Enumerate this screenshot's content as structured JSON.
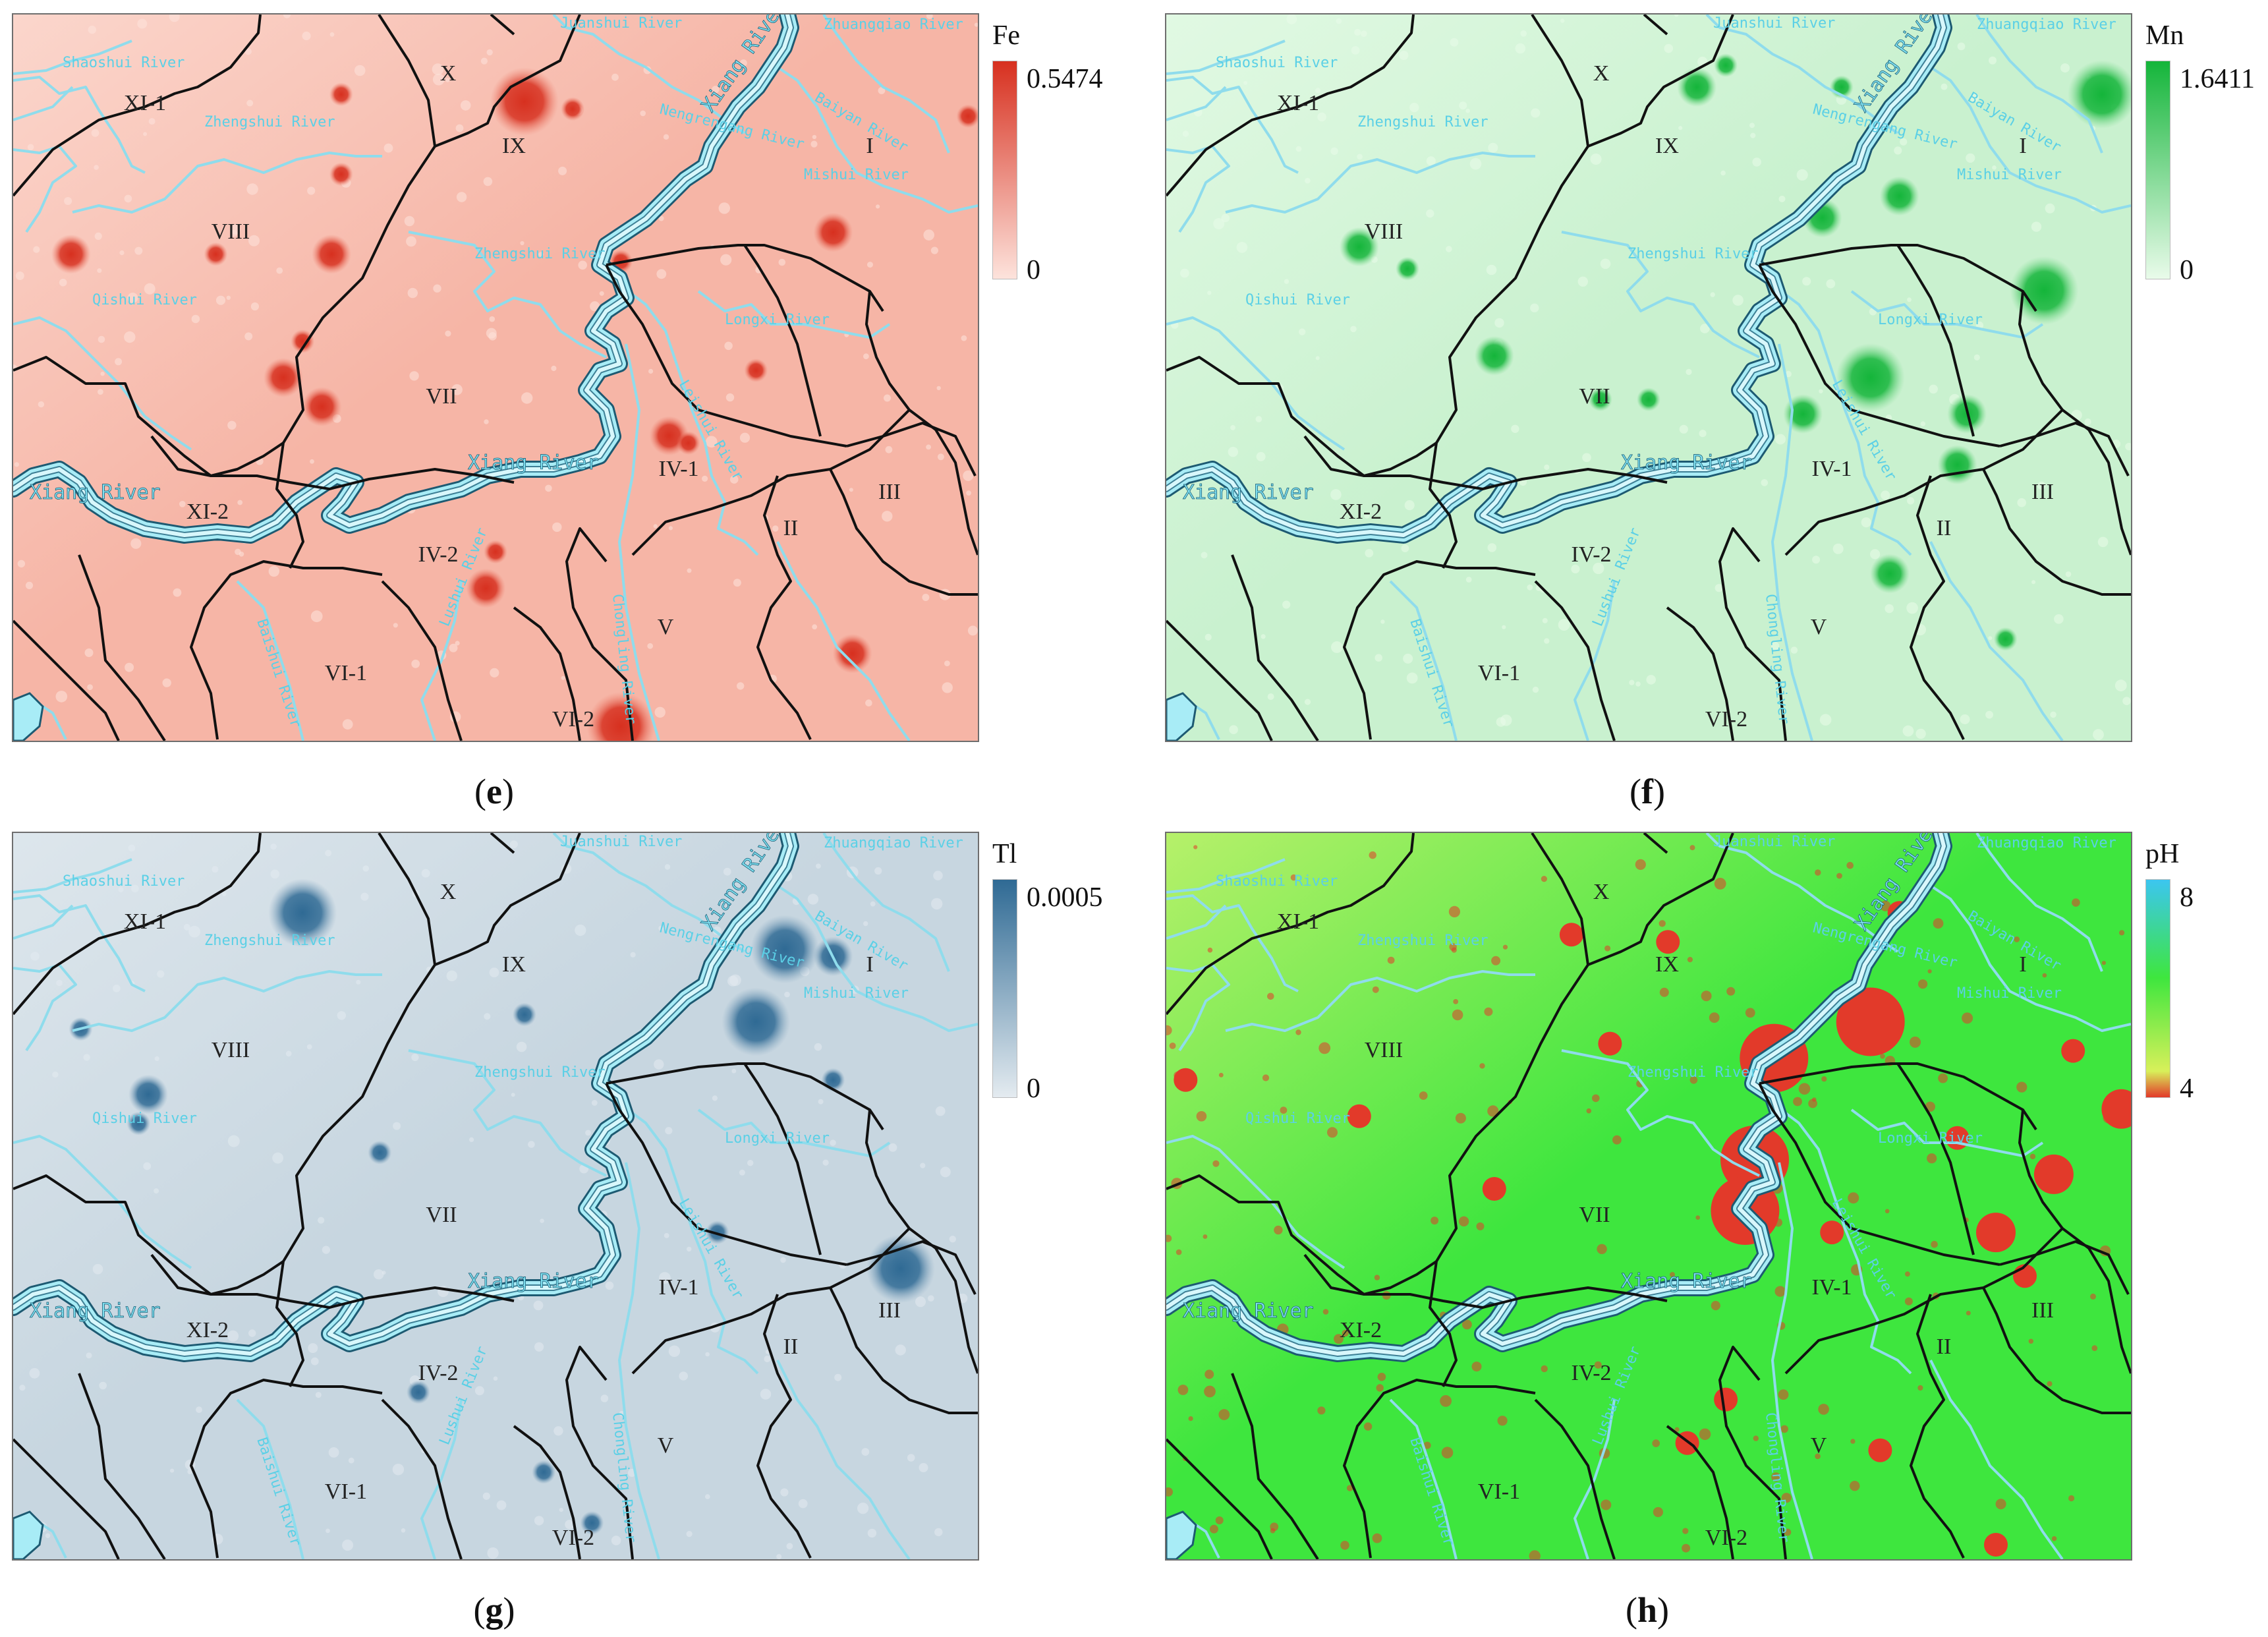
{
  "panels": [
    {
      "id": "e",
      "caption": "e",
      "variable": "Fe",
      "legend_max": "0.5474",
      "legend_min": "0",
      "colors": {
        "bg": "#f6b5a6",
        "bg_light": "#fbd6cc",
        "high": "#d7301f",
        "mid": "#ee7d6a",
        "low": "#fde3dc"
      }
    },
    {
      "id": "f",
      "caption": "f",
      "variable": "Mn",
      "legend_max": "1.6411",
      "legend_min": "0",
      "colors": {
        "bg": "#c9f1cf",
        "bg_light": "#e1f9e3",
        "high": "#14b53a",
        "mid": "#6fd884",
        "low": "#e9fbea"
      }
    },
    {
      "id": "g",
      "caption": "g",
      "variable": "Tl",
      "legend_max": "0.0005",
      "legend_min": "0",
      "colors": {
        "bg": "#c7d6e0",
        "bg_light": "#dde6ec",
        "high": "#2f6a94",
        "mid": "#7ea2bd",
        "low": "#e4ebf0"
      }
    },
    {
      "id": "h",
      "caption": "h",
      "variable": "pH",
      "legend_max": "8",
      "legend_min": "4",
      "colors": {
        "bg": "#3ee63e",
        "bg_light": "#b6f06a",
        "high": "#3cc6f0",
        "mid": "#46d2a8",
        "low": "#e23a2a"
      }
    }
  ],
  "zone_labels": [
    "X",
    "XI-1",
    "IX",
    "I",
    "VIII",
    "VII",
    "IV-1",
    "III",
    "XI-2",
    "II",
    "IV-2",
    "V",
    "VI-1",
    "VI-2"
  ],
  "river_labels": {
    "juanshui": "Juanshui River",
    "zhuangqiao": "Zhuangqiao River",
    "shaoshui": "Shaoshui River",
    "nengrengang": "Nengrengang River",
    "baiyan": "Baiyan River",
    "zhengshui_top": "Zhengshui River",
    "mishui": "Mishui River",
    "zhengshui": "Zhengshui River",
    "qishui": "Qishui River",
    "longxi": "Longxi River",
    "leishui": "Leishui River",
    "xiang_top": "Xiang River",
    "xiang_mid": "Xiang River",
    "xiang_left": "Xiang River",
    "baishui": "Baishui River",
    "lushui": "Lushui River",
    "chongling": "Chongling River"
  },
  "hotspots_relative": {
    "e": [
      [
        0.53,
        0.12,
        "L"
      ],
      [
        0.34,
        0.11,
        "S"
      ],
      [
        0.06,
        0.33,
        "M"
      ],
      [
        0.33,
        0.33,
        "M"
      ],
      [
        0.3,
        0.45,
        "S"
      ],
      [
        0.32,
        0.54,
        "M"
      ],
      [
        0.28,
        0.5,
        "M"
      ],
      [
        0.5,
        0.74,
        "S"
      ],
      [
        0.49,
        0.79,
        "M"
      ],
      [
        0.87,
        0.88,
        "M"
      ],
      [
        0.63,
        0.34,
        "S"
      ],
      [
        0.85,
        0.3,
        "M"
      ],
      [
        0.77,
        0.49,
        "S"
      ],
      [
        0.68,
        0.58,
        "M"
      ],
      [
        0.63,
        0.98,
        "L"
      ],
      [
        0.99,
        0.14,
        "S"
      ],
      [
        0.58,
        0.13,
        "S"
      ],
      [
        0.34,
        0.22,
        "S"
      ],
      [
        0.21,
        0.33,
        "S"
      ],
      [
        0.7,
        0.59,
        "S"
      ]
    ],
    "f": [
      [
        0.55,
        0.1,
        "M"
      ],
      [
        0.58,
        0.07,
        "S"
      ],
      [
        0.97,
        0.11,
        "L"
      ],
      [
        0.91,
        0.38,
        "L"
      ],
      [
        0.2,
        0.32,
        "M"
      ],
      [
        0.25,
        0.35,
        "S"
      ],
      [
        0.34,
        0.47,
        "M"
      ],
      [
        0.5,
        0.53,
        "S"
      ],
      [
        0.68,
        0.28,
        "M"
      ],
      [
        0.76,
        0.25,
        "M"
      ],
      [
        0.73,
        0.5,
        "L"
      ],
      [
        0.66,
        0.55,
        "M"
      ],
      [
        0.83,
        0.55,
        "M"
      ],
      [
        0.82,
        0.62,
        "M"
      ],
      [
        0.75,
        0.77,
        "M"
      ],
      [
        0.7,
        0.1,
        "S"
      ],
      [
        0.45,
        0.53,
        "S"
      ],
      [
        0.87,
        0.86,
        "S"
      ]
    ],
    "g": [
      [
        0.3,
        0.11,
        "L"
      ],
      [
        0.8,
        0.16,
        "L"
      ],
      [
        0.77,
        0.26,
        "L"
      ],
      [
        0.85,
        0.17,
        "M"
      ],
      [
        0.53,
        0.25,
        "S"
      ],
      [
        0.14,
        0.36,
        "M"
      ],
      [
        0.07,
        0.27,
        "S"
      ],
      [
        0.85,
        0.34,
        "S"
      ],
      [
        0.92,
        0.6,
        "L"
      ],
      [
        0.73,
        0.55,
        "S"
      ],
      [
        0.55,
        0.88,
        "S"
      ],
      [
        0.6,
        0.95,
        "S"
      ],
      [
        0.42,
        0.77,
        "S"
      ],
      [
        0.38,
        0.44,
        "S"
      ],
      [
        0.13,
        0.4,
        "S"
      ]
    ],
    "h": [
      [
        0.73,
        0.26,
        "L"
      ],
      [
        0.63,
        0.31,
        "L"
      ],
      [
        0.61,
        0.45,
        "L"
      ],
      [
        0.6,
        0.52,
        "L"
      ],
      [
        0.2,
        0.39,
        "S"
      ],
      [
        0.46,
        0.29,
        "S"
      ],
      [
        0.42,
        0.14,
        "S"
      ],
      [
        0.52,
        0.15,
        "S"
      ],
      [
        0.76,
        0.11,
        "S"
      ],
      [
        0.82,
        0.42,
        "S"
      ],
      [
        0.92,
        0.47,
        "M"
      ],
      [
        0.99,
        0.38,
        "M"
      ],
      [
        0.86,
        0.55,
        "M"
      ],
      [
        0.89,
        0.61,
        "S"
      ],
      [
        0.74,
        0.85,
        "S"
      ],
      [
        0.58,
        0.78,
        "S"
      ],
      [
        0.54,
        0.84,
        "S"
      ],
      [
        0.34,
        0.49,
        "S"
      ],
      [
        0.02,
        0.34,
        "S"
      ],
      [
        0.94,
        0.3,
        "S"
      ],
      [
        0.86,
        0.98,
        "S"
      ],
      [
        0.69,
        0.55,
        "S"
      ]
    ]
  }
}
